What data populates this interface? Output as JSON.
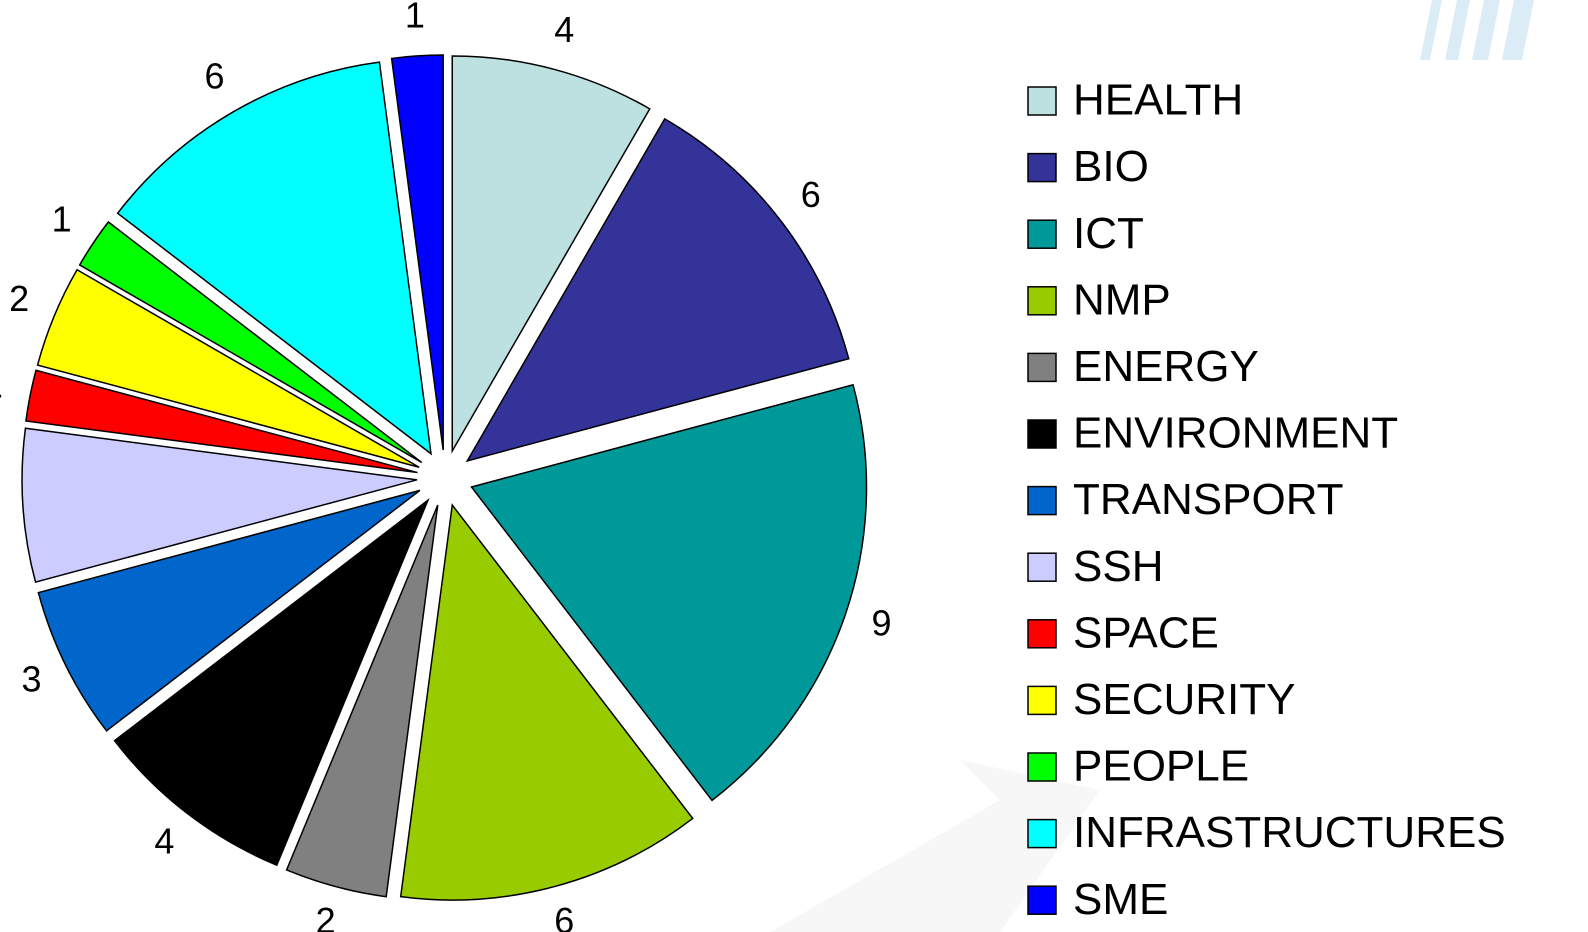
{
  "chart_data": {
    "type": "pie",
    "categories": [
      "HEALTH",
      "BIO",
      "ICT",
      "NMP",
      "ENERGY",
      "ENVIRONMENT",
      "TRANSPORT",
      "SSH",
      "SPACE",
      "SECURITY",
      "PEOPLE",
      "INFRASTRUCTURES",
      "SME"
    ],
    "values": [
      4,
      6,
      9,
      6,
      2,
      4,
      3,
      3,
      1,
      2,
      1,
      6,
      1
    ],
    "colors": [
      "#bde0e0",
      "#333399",
      "#009999",
      "#99cc00",
      "#808080",
      "#000000",
      "#0066cc",
      "#ccccff",
      "#ff0000",
      "#ffff00",
      "#00ff00",
      "#00ffff",
      "#0000ff"
    ],
    "legend": "right"
  }
}
